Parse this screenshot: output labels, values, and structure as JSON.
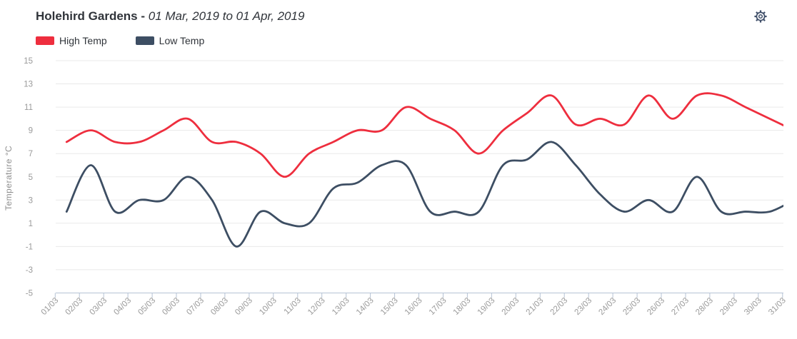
{
  "header": {
    "title_bold": "Holehird Gardens -",
    "title_italic": "01 Mar, 2019 to 01 Apr, 2019"
  },
  "legend": [
    {
      "label": "High Temp",
      "color": "#ee2e3e"
    },
    {
      "label": "Low Temp",
      "color": "#3d4e63"
    }
  ],
  "chart_data": {
    "type": "line",
    "smoothing": "spline",
    "title": "Holehird Gardens - 01 Mar, 2019 to 01 Apr, 2019",
    "ylabel": "Temperature °C",
    "ylim": [
      -5,
      15
    ],
    "ytick_step": 2,
    "grid": true,
    "legend_position": "top-left",
    "categories": [
      "01/03",
      "02/03",
      "03/03",
      "04/03",
      "05/03",
      "06/03",
      "07/03",
      "08/03",
      "09/03",
      "10/03",
      "11/03",
      "12/03",
      "13/03",
      "14/03",
      "15/03",
      "16/03",
      "17/03",
      "18/03",
      "19/03",
      "20/03",
      "21/03",
      "22/03",
      "23/03",
      "24/03",
      "25/03",
      "26/03",
      "27/03",
      "28/03",
      "29/03",
      "30/03",
      "31/03"
    ],
    "series": [
      {
        "name": "High Temp",
        "color": "#ee2e3e",
        "values": [
          8,
          9,
          8,
          8,
          9,
          10,
          8,
          8,
          7,
          5,
          7,
          8,
          9,
          9,
          11,
          10,
          9,
          7,
          9,
          10.5,
          12,
          9.5,
          10,
          9.5,
          12,
          10,
          12,
          12,
          11,
          10,
          9
        ]
      },
      {
        "name": "Low Temp",
        "color": "#3d4e63",
        "values": [
          2,
          6,
          2,
          3,
          3,
          5,
          3,
          -1,
          2,
          1,
          1,
          4,
          4.5,
          6,
          6,
          2,
          2,
          2,
          6,
          6.5,
          8,
          6,
          3.5,
          2,
          3,
          2,
          5,
          2,
          2,
          2,
          3
        ]
      }
    ]
  },
  "colors": {
    "grid": "#e9e9e9",
    "axis_line": "#b6c3d5",
    "tick_label": "#9a9a9a",
    "axis_title": "#8f8f8f",
    "icon": "#41506a"
  }
}
